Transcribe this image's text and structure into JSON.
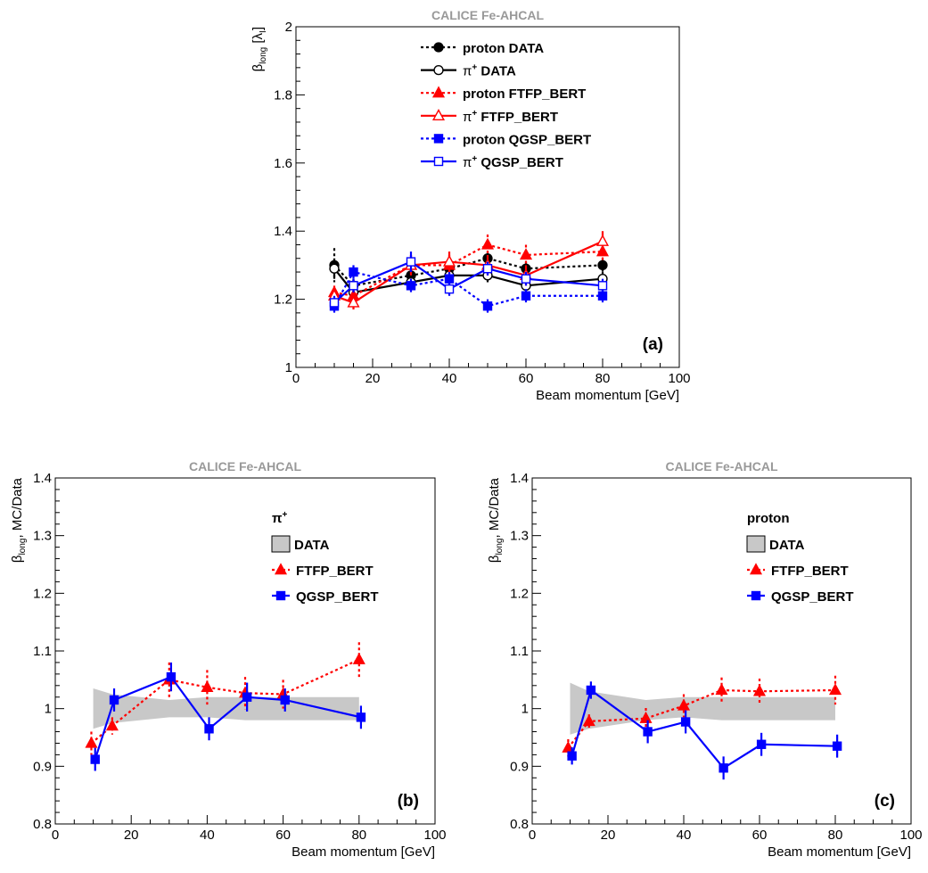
{
  "colors": {
    "data": "#000000",
    "ftfp": "#ff0000",
    "qgsp": "#0000ff",
    "band": "#c8c8c8",
    "header": "#999999"
  },
  "chart_data": [
    {
      "id": "a",
      "type": "line",
      "title": "CALICE Fe-AHCAL",
      "xlabel": "Beam momentum [GeV]",
      "ylabel": "β_long [λ_I]",
      "xlim": [
        0,
        100
      ],
      "ylim": [
        1,
        2
      ],
      "xticks": [
        "0",
        "20",
        "40",
        "60",
        "80",
        "100"
      ],
      "yticks": [
        "1",
        "1.2",
        "1.4",
        "1.6",
        "1.8",
        "2"
      ],
      "panel_label": "(a)",
      "series": [
        {
          "name": "proton DATA",
          "legend_prefix": "proton",
          "legend_suffix": "DATA",
          "color": "#000000",
          "dash": "dotted",
          "marker": "circle-filled",
          "x": [
            10,
            15,
            30,
            40,
            50,
            60,
            80
          ],
          "y": [
            1.3,
            1.24,
            1.27,
            1.29,
            1.32,
            1.29,
            1.3
          ],
          "err": [
            0.05,
            0.02,
            0.02,
            0.02,
            0.02,
            0.02,
            0.02
          ]
        },
        {
          "name": "π+ DATA",
          "legend_prefix": "π+",
          "legend_suffix": "DATA",
          "color": "#000000",
          "dash": "solid",
          "marker": "circle-open",
          "x": [
            10,
            15,
            30,
            40,
            50,
            60,
            80
          ],
          "y": [
            1.29,
            1.22,
            1.25,
            1.27,
            1.27,
            1.24,
            1.26
          ],
          "err": [
            0.03,
            0.02,
            0.02,
            0.02,
            0.02,
            0.02,
            0.02
          ]
        },
        {
          "name": "proton FTFP_BERT",
          "legend_prefix": "proton",
          "legend_suffix": "FTFP_BERT",
          "color": "#ff0000",
          "dash": "dotted",
          "marker": "triangle-filled",
          "x": [
            10,
            15,
            30,
            40,
            50,
            60,
            80
          ],
          "y": [
            1.22,
            1.21,
            1.3,
            1.3,
            1.36,
            1.33,
            1.34
          ],
          "err": [
            0.02,
            0.02,
            0.03,
            0.03,
            0.03,
            0.03,
            0.03
          ]
        },
        {
          "name": "π+ FTFP_BERT",
          "legend_prefix": "π+",
          "legend_suffix": "FTFP_BERT",
          "color": "#ff0000",
          "dash": "solid",
          "marker": "triangle-open",
          "x": [
            10,
            15,
            30,
            40,
            50,
            60,
            80
          ],
          "y": [
            1.21,
            1.19,
            1.3,
            1.31,
            1.3,
            1.27,
            1.37
          ],
          "err": [
            0.02,
            0.02,
            0.03,
            0.03,
            0.03,
            0.03,
            0.03
          ]
        },
        {
          "name": "proton QGSP_BERT",
          "legend_prefix": "proton",
          "legend_suffix": "QGSP_BERT",
          "color": "#0000ff",
          "dash": "dotted",
          "marker": "square-filled",
          "x": [
            10,
            15,
            30,
            40,
            50,
            60,
            80
          ],
          "y": [
            1.18,
            1.28,
            1.24,
            1.26,
            1.18,
            1.21,
            1.21
          ],
          "err": [
            0.02,
            0.02,
            0.02,
            0.02,
            0.02,
            0.02,
            0.02
          ]
        },
        {
          "name": "π+ QGSP_BERT",
          "legend_prefix": "π+",
          "legend_suffix": "QGSP_BERT",
          "color": "#0000ff",
          "dash": "solid",
          "marker": "square-open",
          "x": [
            10,
            15,
            30,
            40,
            50,
            60,
            80
          ],
          "y": [
            1.19,
            1.24,
            1.31,
            1.23,
            1.29,
            1.26,
            1.24
          ],
          "err": [
            0.02,
            0.02,
            0.03,
            0.02,
            0.02,
            0.02,
            0.02
          ]
        }
      ]
    },
    {
      "id": "b",
      "type": "line",
      "title": "CALICE Fe-AHCAL",
      "xlabel": "Beam momentum [GeV]",
      "ylabel": "β_long, MC/Data",
      "xlim": [
        0,
        100
      ],
      "ylim": [
        0.8,
        1.4
      ],
      "xticks": [
        "0",
        "20",
        "40",
        "60",
        "80",
        "100"
      ],
      "yticks": [
        "0.8",
        "0.9",
        "1",
        "1.1",
        "1.2",
        "1.3",
        "1.4"
      ],
      "panel_label": "(b)",
      "legend_header": "π+",
      "band": {
        "name": "DATA",
        "x": [
          10,
          15,
          30,
          40,
          50,
          60,
          80
        ],
        "lower": [
          0.965,
          0.975,
          0.985,
          0.985,
          0.98,
          0.98,
          0.98
        ],
        "upper": [
          1.035,
          1.025,
          1.015,
          1.02,
          1.02,
          1.02,
          1.02
        ]
      },
      "series": [
        {
          "name": "FTFP_BERT",
          "color": "#ff0000",
          "dash": "dotted",
          "marker": "triangle-filled",
          "x": [
            9.5,
            15,
            30,
            40,
            50,
            60,
            80
          ],
          "y": [
            0.94,
            0.97,
            1.05,
            1.037,
            1.027,
            1.025,
            1.085
          ],
          "err": [
            0.02,
            0.015,
            0.03,
            0.03,
            0.028,
            0.025,
            0.03
          ]
        },
        {
          "name": "QGSP_BERT",
          "color": "#0000ff",
          "dash": "solid",
          "marker": "square-filled",
          "x": [
            10.5,
            15.5,
            30.5,
            40.5,
            50.5,
            60.5,
            80.5
          ],
          "y": [
            0.912,
            1.015,
            1.055,
            0.965,
            1.02,
            1.015,
            0.985
          ],
          "err": [
            0.02,
            0.02,
            0.025,
            0.02,
            0.025,
            0.02,
            0.02
          ]
        }
      ]
    },
    {
      "id": "c",
      "type": "line",
      "title": "CALICE Fe-AHCAL",
      "xlabel": "Beam momentum [GeV]",
      "ylabel": "β_long, MC/Data",
      "xlim": [
        0,
        100
      ],
      "ylim": [
        0.8,
        1.4
      ],
      "xticks": [
        "0",
        "20",
        "40",
        "60",
        "80",
        "100"
      ],
      "yticks": [
        "0.8",
        "0.9",
        "1",
        "1.1",
        "1.2",
        "1.3",
        "1.4"
      ],
      "panel_label": "(c)",
      "legend_header": "proton",
      "band": {
        "name": "DATA",
        "x": [
          10,
          15,
          30,
          40,
          50,
          60,
          80
        ],
        "lower": [
          0.955,
          0.965,
          0.98,
          0.985,
          0.98,
          0.98,
          0.98
        ],
        "upper": [
          1.045,
          1.03,
          1.015,
          1.02,
          1.02,
          1.02,
          1.02
        ]
      },
      "series": [
        {
          "name": "FTFP_BERT",
          "color": "#ff0000",
          "dash": "dotted",
          "marker": "triangle-filled",
          "x": [
            9.5,
            15,
            30,
            40,
            50,
            60,
            80
          ],
          "y": [
            0.932,
            0.978,
            0.983,
            1.005,
            1.032,
            1.03,
            1.032
          ],
          "err": [
            0.015,
            0.012,
            0.018,
            0.02,
            0.022,
            0.022,
            0.025
          ]
        },
        {
          "name": "QGSP_BERT",
          "color": "#0000ff",
          "dash": "solid",
          "marker": "square-filled",
          "x": [
            10.5,
            15.5,
            30.5,
            40.5,
            50.5,
            60.5,
            80.5
          ],
          "y": [
            0.918,
            1.032,
            0.96,
            0.977,
            0.897,
            0.938,
            0.935
          ],
          "err": [
            0.015,
            0.015,
            0.02,
            0.02,
            0.02,
            0.02,
            0.02
          ]
        }
      ]
    }
  ]
}
